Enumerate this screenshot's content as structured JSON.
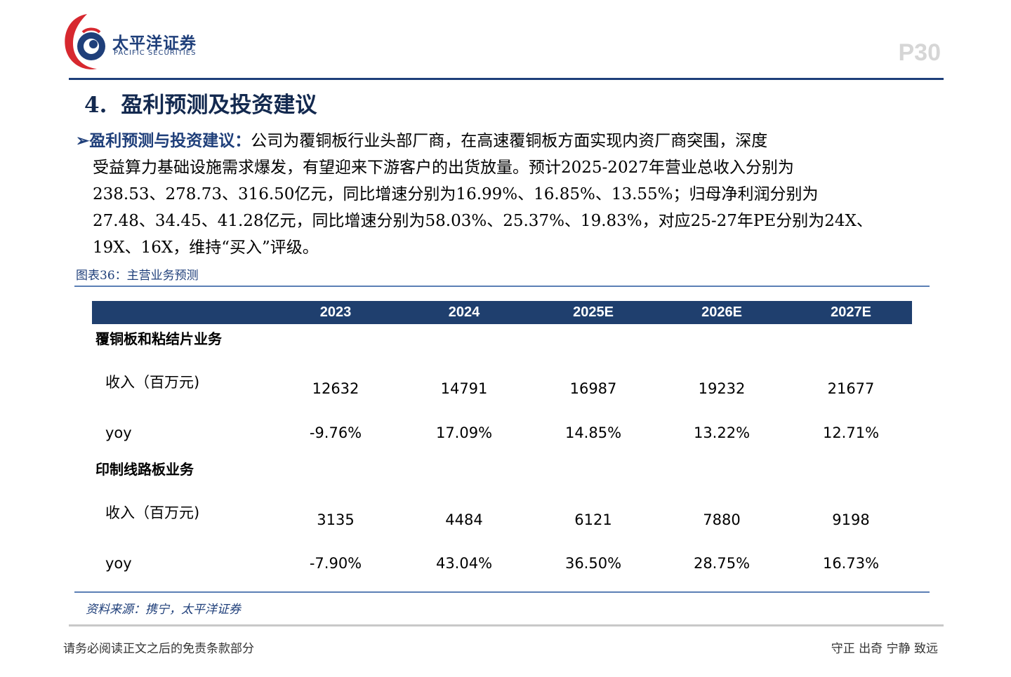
{
  "header": {
    "logo_cn": "太平洋证券",
    "logo_en": "PACIFIC SECURITIES",
    "page_number": "P30"
  },
  "section": {
    "number": "4.",
    "title": "盈利预测及投资建议"
  },
  "paragraph": {
    "bullet": "➢",
    "lead": "盈利预测与投资建议：",
    "lines": [
      "公司为覆铜板行业头部厂商，在高速覆铜板方面实现内资厂商突围，深度",
      "受益算力基础设施需求爆发，有望迎来下游客户的出货放量。预计2025-2027年营业总收入分别为",
      "238.53、278.73、316.50亿元，同比增速分别为16.99%、16.85%、13.55%；归母净利润分别为",
      "27.48、34.45、41.28亿元，同比增速分别为58.03%、25.37%、19.83%，对应25-27年PE分别为24X、",
      "19X、16X，维持“买入”评级。"
    ]
  },
  "figure": {
    "caption": "图表36：主营业务预测",
    "source": "资料来源：携宁，太平洋证券"
  },
  "table": {
    "headers": [
      "2023",
      "2024",
      "2025E",
      "2026E",
      "2027E"
    ],
    "groups": [
      {
        "name": "覆铜板和粘结片业务",
        "rows": [
          {
            "label": "收入（百万元)",
            "values": [
              "12632",
              "14791",
              "16987",
              "19232",
              "21677"
            ]
          },
          {
            "label": "yoy",
            "values": [
              "-9.76%",
              "17.09%",
              "14.85%",
              "13.22%",
              "12.71%"
            ]
          }
        ]
      },
      {
        "name": "印制线路板业务",
        "rows": [
          {
            "label": "收入（百万元)",
            "values": [
              "3135",
              "4484",
              "6121",
              "7880",
              "9198"
            ]
          },
          {
            "label": "yoy",
            "values": [
              "-7.90%",
              "43.04%",
              "36.50%",
              "28.75%",
              "16.73%"
            ]
          }
        ]
      }
    ]
  },
  "footer": {
    "left": "请务必阅读正文之后的免责条款部分",
    "right": "守正 出奇 宁静 致远"
  },
  "colors": {
    "brand_blue": "#1f3f7a",
    "header_fill": "#1f3f6e",
    "logo_red": "#d7282f"
  }
}
